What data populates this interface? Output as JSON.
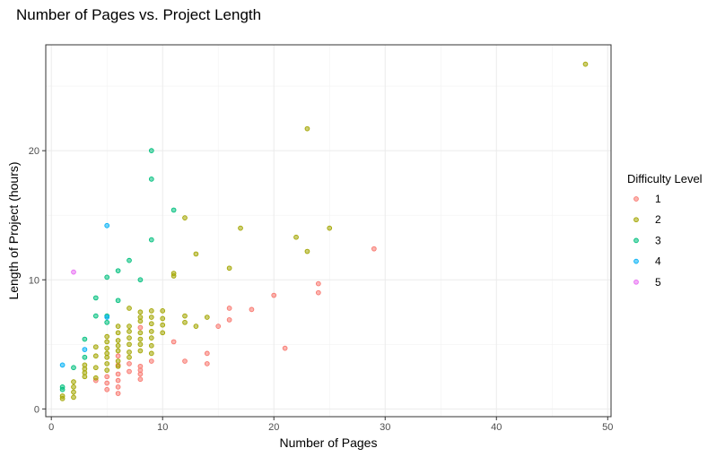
{
  "chart_data": {
    "type": "scatter",
    "title": "Number of Pages vs. Project Length",
    "xlabel": "Number of Pages",
    "ylabel": "Length of Project (hours)",
    "xlim": [
      -0.5,
      50.3
    ],
    "ylim": [
      -0.6,
      28.2
    ],
    "x_ticks": [
      0,
      10,
      20,
      30,
      40,
      50
    ],
    "y_ticks": [
      0,
      10,
      20
    ],
    "grid": true,
    "legend": {
      "title": "Difficulty Level",
      "position": "right"
    },
    "series": [
      {
        "name": "1",
        "color": "#F8766D",
        "points": [
          [
            4,
            2.2
          ],
          [
            5,
            1.5
          ],
          [
            5,
            2.0
          ],
          [
            5,
            2.5
          ],
          [
            6,
            1.2
          ],
          [
            6,
            1.7
          ],
          [
            6,
            2.2
          ],
          [
            6,
            2.7
          ],
          [
            6,
            3.4
          ],
          [
            6,
            4.1
          ],
          [
            7,
            2.9
          ],
          [
            7,
            3.5
          ],
          [
            8,
            2.3
          ],
          [
            8,
            2.7
          ],
          [
            8,
            3.0
          ],
          [
            8,
            3.3
          ],
          [
            8,
            6.3
          ],
          [
            9,
            3.7
          ],
          [
            11,
            5.2
          ],
          [
            12,
            3.7
          ],
          [
            14,
            3.5
          ],
          [
            14,
            4.3
          ],
          [
            15,
            6.4
          ],
          [
            16,
            6.9
          ],
          [
            16,
            7.8
          ],
          [
            18,
            7.7
          ],
          [
            20,
            8.8
          ],
          [
            21,
            4.7
          ],
          [
            24,
            9.0
          ],
          [
            24,
            9.7
          ],
          [
            29,
            12.4
          ]
        ]
      },
      {
        "name": "2",
        "color": "#A3A500",
        "points": [
          [
            1,
            0.8
          ],
          [
            1,
            1.0
          ],
          [
            2,
            0.9
          ],
          [
            2,
            1.3
          ],
          [
            2,
            1.7
          ],
          [
            2,
            2.1
          ],
          [
            3,
            2.5
          ],
          [
            3,
            2.8
          ],
          [
            3,
            3.1
          ],
          [
            3,
            3.4
          ],
          [
            4,
            2.4
          ],
          [
            4,
            3.2
          ],
          [
            4,
            4.1
          ],
          [
            4,
            4.8
          ],
          [
            5,
            3.0
          ],
          [
            5,
            3.5
          ],
          [
            5,
            4.0
          ],
          [
            5,
            4.3
          ],
          [
            5,
            4.7
          ],
          [
            5,
            5.2
          ],
          [
            5,
            5.6
          ],
          [
            6,
            3.3
          ],
          [
            6,
            3.7
          ],
          [
            6,
            4.5
          ],
          [
            6,
            4.9
          ],
          [
            6,
            5.3
          ],
          [
            6,
            5.9
          ],
          [
            6,
            6.4
          ],
          [
            7,
            4.0
          ],
          [
            7,
            4.4
          ],
          [
            7,
            5.0
          ],
          [
            7,
            5.5
          ],
          [
            7,
            6.0
          ],
          [
            7,
            6.4
          ],
          [
            7,
            7.8
          ],
          [
            8,
            4.5
          ],
          [
            8,
            5.0
          ],
          [
            8,
            5.4
          ],
          [
            8,
            5.9
          ],
          [
            8,
            6.8
          ],
          [
            8,
            7.1
          ],
          [
            8,
            7.5
          ],
          [
            9,
            4.3
          ],
          [
            9,
            4.9
          ],
          [
            9,
            5.5
          ],
          [
            9,
            6.0
          ],
          [
            9,
            6.6
          ],
          [
            9,
            7.1
          ],
          [
            9,
            7.6
          ],
          [
            10,
            5.9
          ],
          [
            10,
            6.5
          ],
          [
            10,
            7.0
          ],
          [
            10,
            7.6
          ],
          [
            11,
            10.3
          ],
          [
            11,
            10.5
          ],
          [
            12,
            6.7
          ],
          [
            12,
            7.2
          ],
          [
            12,
            14.8
          ],
          [
            13,
            6.4
          ],
          [
            13,
            12.0
          ],
          [
            14,
            7.1
          ],
          [
            16,
            10.9
          ],
          [
            17,
            14.0
          ],
          [
            22,
            13.3
          ],
          [
            23,
            12.2
          ],
          [
            23,
            21.7
          ],
          [
            25,
            14.0
          ],
          [
            48,
            26.7
          ]
        ]
      },
      {
        "name": "3",
        "color": "#00BF7D",
        "points": [
          [
            1,
            1.5
          ],
          [
            1,
            1.7
          ],
          [
            2,
            3.2
          ],
          [
            3,
            4.0
          ],
          [
            3,
            5.4
          ],
          [
            4,
            7.2
          ],
          [
            4,
            8.6
          ],
          [
            5,
            6.7
          ],
          [
            5,
            7.2
          ],
          [
            5,
            10.2
          ],
          [
            6,
            8.4
          ],
          [
            6,
            10.7
          ],
          [
            7,
            11.5
          ],
          [
            8,
            10.0
          ],
          [
            9,
            13.1
          ],
          [
            9,
            17.8
          ],
          [
            9,
            20.0
          ],
          [
            11,
            15.4
          ]
        ]
      },
      {
        "name": "4",
        "color": "#00B0F6",
        "points": [
          [
            1,
            3.4
          ],
          [
            3,
            4.6
          ],
          [
            5,
            7.1
          ],
          [
            5,
            14.2
          ]
        ]
      },
      {
        "name": "5",
        "color": "#E76BF3",
        "points": [
          [
            2,
            10.6
          ]
        ]
      }
    ]
  }
}
